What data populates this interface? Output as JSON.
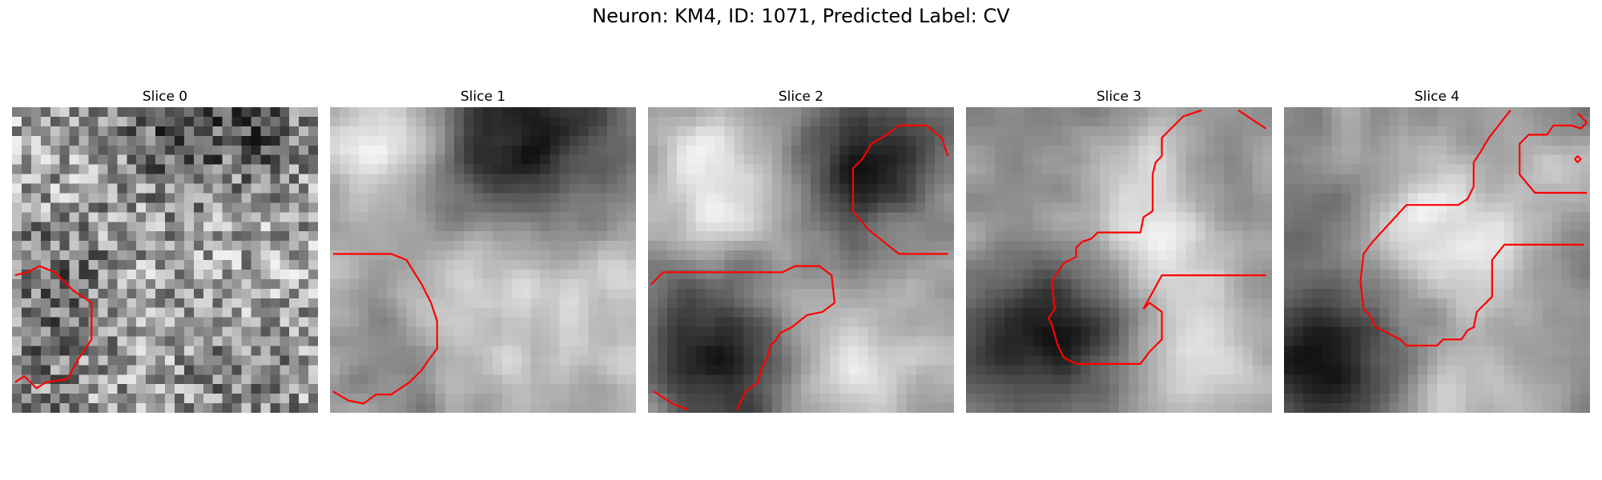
{
  "figure": {
    "title": "Neuron: KM4, ID: 1071, Predicted Label: CV",
    "contour_color": "#ff0000",
    "colormap": "gray"
  },
  "slices": [
    {
      "title": "Slice 0",
      "seed": 11,
      "blur": 0,
      "noise": 0.55,
      "blobs": [
        [
          0.55,
          0.05,
          0.18,
          -0.55
        ],
        [
          0.85,
          0.08,
          0.12,
          -0.35
        ],
        [
          0.15,
          0.58,
          0.14,
          -0.45
        ],
        [
          0.75,
          0.9,
          0.15,
          -0.3
        ],
        [
          0.1,
          0.93,
          0.15,
          -0.25
        ]
      ],
      "contours": [
        [
          [
            0.01,
            0.55
          ],
          [
            0.05,
            0.54
          ],
          [
            0.09,
            0.52
          ],
          [
            0.14,
            0.54
          ],
          [
            0.2,
            0.6
          ],
          [
            0.26,
            0.64
          ],
          [
            0.26,
            0.76
          ],
          [
            0.22,
            0.82
          ],
          [
            0.18,
            0.89
          ],
          [
            0.11,
            0.9
          ],
          [
            0.08,
            0.92
          ],
          [
            0.04,
            0.88
          ],
          [
            0.01,
            0.9
          ]
        ]
      ]
    },
    {
      "title": "Slice 1",
      "seed": 23,
      "blur": 2,
      "noise": 0.35,
      "blobs": [
        [
          0.65,
          0.1,
          0.22,
          -1.0
        ],
        [
          0.18,
          0.12,
          0.12,
          0.6
        ],
        [
          0.2,
          0.8,
          0.15,
          -0.45
        ],
        [
          0.38,
          0.72,
          0.16,
          0.35
        ],
        [
          0.82,
          0.6,
          0.18,
          0.3
        ],
        [
          0.6,
          0.5,
          0.18,
          0.1
        ]
      ],
      "contours": [
        [
          [
            0.01,
            0.48
          ],
          [
            0.2,
            0.48
          ],
          [
            0.25,
            0.5
          ],
          [
            0.3,
            0.58
          ],
          [
            0.33,
            0.64
          ],
          [
            0.35,
            0.7
          ],
          [
            0.35,
            0.79
          ],
          [
            0.32,
            0.83
          ],
          [
            0.3,
            0.86
          ],
          [
            0.26,
            0.9
          ],
          [
            0.2,
            0.94
          ],
          [
            0.15,
            0.94
          ],
          [
            0.11,
            0.97
          ],
          [
            0.06,
            0.96
          ],
          [
            0.01,
            0.93
          ]
        ]
      ]
    },
    {
      "title": "Slice 2",
      "seed": 37,
      "blur": 2,
      "noise": 0.35,
      "blobs": [
        [
          0.7,
          0.2,
          0.17,
          -1.1
        ],
        [
          0.26,
          0.85,
          0.2,
          -1.0
        ],
        [
          0.1,
          0.6,
          0.12,
          -0.4
        ],
        [
          0.25,
          0.28,
          0.18,
          0.6
        ],
        [
          0.6,
          0.85,
          0.17,
          0.6
        ],
        [
          0.87,
          0.45,
          0.12,
          0.1
        ]
      ],
      "contours": [
        [
          [
            0.01,
            0.58
          ],
          [
            0.05,
            0.54
          ],
          [
            0.44,
            0.54
          ],
          [
            0.48,
            0.52
          ],
          [
            0.56,
            0.52
          ],
          [
            0.6,
            0.55
          ],
          [
            0.61,
            0.64
          ],
          [
            0.57,
            0.67
          ],
          [
            0.52,
            0.68
          ],
          [
            0.47,
            0.72
          ],
          [
            0.43,
            0.74
          ],
          [
            0.42,
            0.76
          ],
          [
            0.4,
            0.78
          ],
          [
            0.39,
            0.82
          ],
          [
            0.37,
            0.86
          ],
          [
            0.36,
            0.9
          ],
          [
            0.32,
            0.93
          ],
          [
            0.29,
            0.99
          ]
        ],
        [
          [
            0.98,
            0.16
          ],
          [
            0.96,
            0.1
          ],
          [
            0.91,
            0.06
          ],
          [
            0.82,
            0.06
          ],
          [
            0.78,
            0.09
          ],
          [
            0.73,
            0.12
          ],
          [
            0.7,
            0.17
          ],
          [
            0.67,
            0.2
          ],
          [
            0.67,
            0.34
          ],
          [
            0.72,
            0.4
          ],
          [
            0.82,
            0.48
          ],
          [
            0.98,
            0.48
          ]
        ],
        [
          [
            0.02,
            0.93
          ],
          [
            0.05,
            0.95
          ],
          [
            0.08,
            0.97
          ],
          [
            0.13,
            0.99
          ]
        ]
      ]
    },
    {
      "title": "Slice 3",
      "seed": 53,
      "blur": 2,
      "noise": 0.35,
      "blobs": [
        [
          0.38,
          0.72,
          0.16,
          -1.0
        ],
        [
          0.12,
          0.78,
          0.16,
          -0.7
        ],
        [
          0.6,
          0.5,
          0.18,
          0.7
        ],
        [
          0.62,
          0.2,
          0.14,
          0.4
        ],
        [
          0.85,
          0.25,
          0.12,
          -0.3
        ],
        [
          0.3,
          0.2,
          0.2,
          -0.15
        ],
        [
          0.75,
          0.87,
          0.15,
          0.5
        ]
      ],
      "contours": [
        [
          [
            0.58,
            0.66
          ],
          [
            0.64,
            0.55
          ],
          [
            0.98,
            0.55
          ]
        ],
        [
          [
            0.77,
            0.01
          ],
          [
            0.71,
            0.03
          ],
          [
            0.64,
            0.1
          ],
          [
            0.64,
            0.16
          ],
          [
            0.62,
            0.18
          ],
          [
            0.61,
            0.22
          ],
          [
            0.61,
            0.34
          ],
          [
            0.58,
            0.36
          ],
          [
            0.57,
            0.41
          ],
          [
            0.43,
            0.41
          ],
          [
            0.41,
            0.43
          ],
          [
            0.38,
            0.44
          ],
          [
            0.36,
            0.46
          ],
          [
            0.36,
            0.49
          ],
          [
            0.32,
            0.51
          ],
          [
            0.28,
            0.57
          ],
          [
            0.29,
            0.66
          ],
          [
            0.27,
            0.69
          ],
          [
            0.28,
            0.71
          ],
          [
            0.3,
            0.78
          ],
          [
            0.32,
            0.82
          ],
          [
            0.36,
            0.84
          ],
          [
            0.57,
            0.84
          ],
          [
            0.6,
            0.8
          ],
          [
            0.64,
            0.76
          ],
          [
            0.64,
            0.67
          ],
          [
            0.6,
            0.64
          ],
          [
            0.58,
            0.66
          ]
        ],
        [
          [
            0.89,
            0.01
          ],
          [
            0.92,
            0.03
          ],
          [
            0.98,
            0.07
          ]
        ]
      ]
    },
    {
      "title": "Slice 4",
      "seed": 71,
      "blur": 2,
      "noise": 0.35,
      "blobs": [
        [
          0.15,
          0.82,
          0.18,
          -1.0
        ],
        [
          0.55,
          0.42,
          0.18,
          0.8
        ],
        [
          0.1,
          0.3,
          0.15,
          -0.25
        ],
        [
          0.9,
          0.2,
          0.1,
          0.4
        ],
        [
          0.3,
          0.15,
          0.15,
          0.15
        ],
        [
          0.6,
          0.9,
          0.15,
          0.4
        ]
      ],
      "contours": [
        [
          [
            0.98,
            0.45
          ],
          [
            0.72,
            0.45
          ],
          [
            0.68,
            0.5
          ],
          [
            0.68,
            0.62
          ],
          [
            0.63,
            0.67
          ],
          [
            0.62,
            0.72
          ],
          [
            0.6,
            0.73
          ],
          [
            0.58,
            0.76
          ],
          [
            0.52,
            0.76
          ],
          [
            0.5,
            0.78
          ],
          [
            0.4,
            0.78
          ],
          [
            0.38,
            0.76
          ],
          [
            0.3,
            0.72
          ],
          [
            0.28,
            0.68
          ],
          [
            0.26,
            0.66
          ],
          [
            0.25,
            0.57
          ],
          [
            0.26,
            0.48
          ],
          [
            0.29,
            0.44
          ],
          [
            0.4,
            0.32
          ],
          [
            0.57,
            0.32
          ],
          [
            0.6,
            0.3
          ],
          [
            0.62,
            0.26
          ],
          [
            0.62,
            0.18
          ],
          [
            0.64,
            0.15
          ],
          [
            0.67,
            0.1
          ],
          [
            0.74,
            0.01
          ]
        ],
        [
          [
            0.96,
            0.02
          ],
          [
            0.99,
            0.05
          ],
          [
            0.97,
            0.07
          ],
          [
            0.94,
            0.06
          ],
          [
            0.88,
            0.06
          ],
          [
            0.86,
            0.09
          ],
          [
            0.8,
            0.09
          ],
          [
            0.77,
            0.12
          ],
          [
            0.77,
            0.22
          ],
          [
            0.82,
            0.28
          ],
          [
            0.99,
            0.28
          ]
        ],
        [
          [
            0.95,
            0.17
          ],
          [
            0.96,
            0.16
          ],
          [
            0.97,
            0.17
          ],
          [
            0.96,
            0.18
          ],
          [
            0.95,
            0.17
          ]
        ]
      ]
    }
  ]
}
